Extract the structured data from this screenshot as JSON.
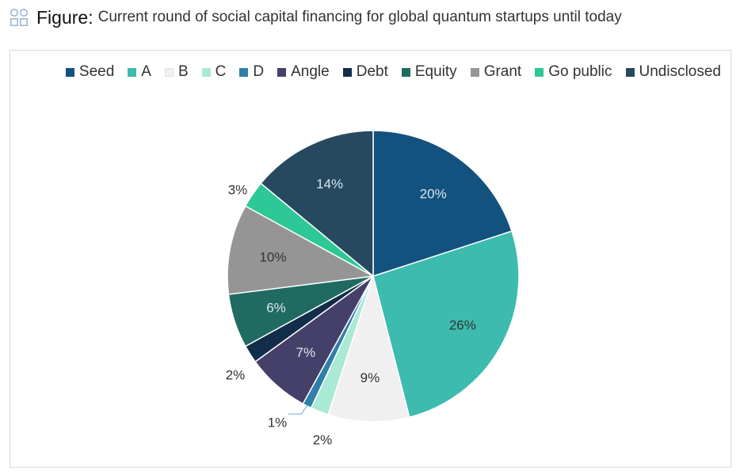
{
  "header": {
    "icon": "grid-icon",
    "label": "Figure:",
    "title": "Current round of social capital financing for global quantum startups until today"
  },
  "chart_data": {
    "type": "pie",
    "title": "",
    "legend_placement": "top",
    "categories": [
      "Seed",
      "A",
      "B",
      "C",
      "D",
      "Angle",
      "Debt",
      "Equity",
      "Grant",
      "Go public",
      "Undisclosed"
    ],
    "values": [
      20,
      26,
      9,
      2,
      1,
      7,
      2,
      6,
      10,
      3,
      14
    ],
    "labels": [
      "20%",
      "26%",
      "9%",
      "2%",
      "1%",
      "7%",
      "2%",
      "6%",
      "10%",
      "3%",
      "14%"
    ],
    "colors": [
      "#13527f",
      "#3cbbae",
      "#f0f0f0",
      "#a9e9d6",
      "#2f7fa9",
      "#45406a",
      "#122d49",
      "#1f6b61",
      "#959595",
      "#2ec796",
      "#26495f"
    ]
  }
}
